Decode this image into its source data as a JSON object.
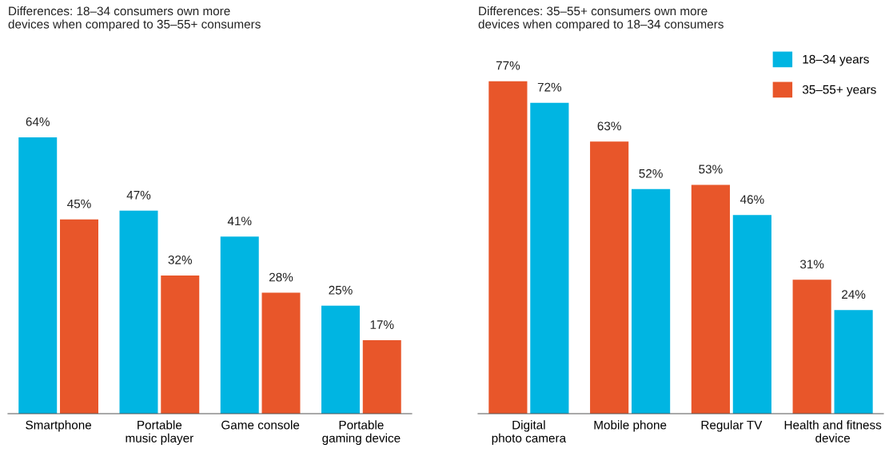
{
  "chart_data": [
    {
      "type": "bar",
      "title": "Differences: 18–34 consumers own more\ndevices when compared to 35–55+ consumers",
      "categories": [
        "Smartphone",
        "Portable\nmusic player",
        "Game console",
        "Portable\ngaming device"
      ],
      "tick_labels": "x",
      "legend": false,
      "series": [
        {
          "color": "#00b5e2",
          "values": [
            64,
            47,
            41,
            25
          ],
          "value_labels": [
            "64%",
            "47%",
            "41%",
            "25%"
          ]
        },
        {
          "color": "#e8562a",
          "values": [
            45,
            32,
            28,
            17
          ],
          "value_labels": [
            "45%",
            "32%",
            "28%",
            "17%"
          ]
        }
      ]
    },
    {
      "type": "bar",
      "title": "Differences: 35–55+ consumers own more\ndevices when compared to 18–34 consumers",
      "categories": [
        "Digital\nphoto camera",
        "Mobile phone",
        "Regular TV",
        "Health and fitness\ndevice"
      ],
      "tick_labels": "x",
      "legend": "top right",
      "series": [
        {
          "name": "35–55+ years",
          "color": "#e8562a",
          "values": [
            77,
            63,
            53,
            31
          ],
          "value_labels": [
            "77%",
            "63%",
            "53%",
            "31%"
          ]
        },
        {
          "name": "18–34 years",
          "color": "#00b5e2",
          "values": [
            72,
            52,
            46,
            24
          ],
          "value_labels": [
            "72%",
            "52%",
            "46%",
            "24%"
          ]
        }
      ]
    }
  ]
}
